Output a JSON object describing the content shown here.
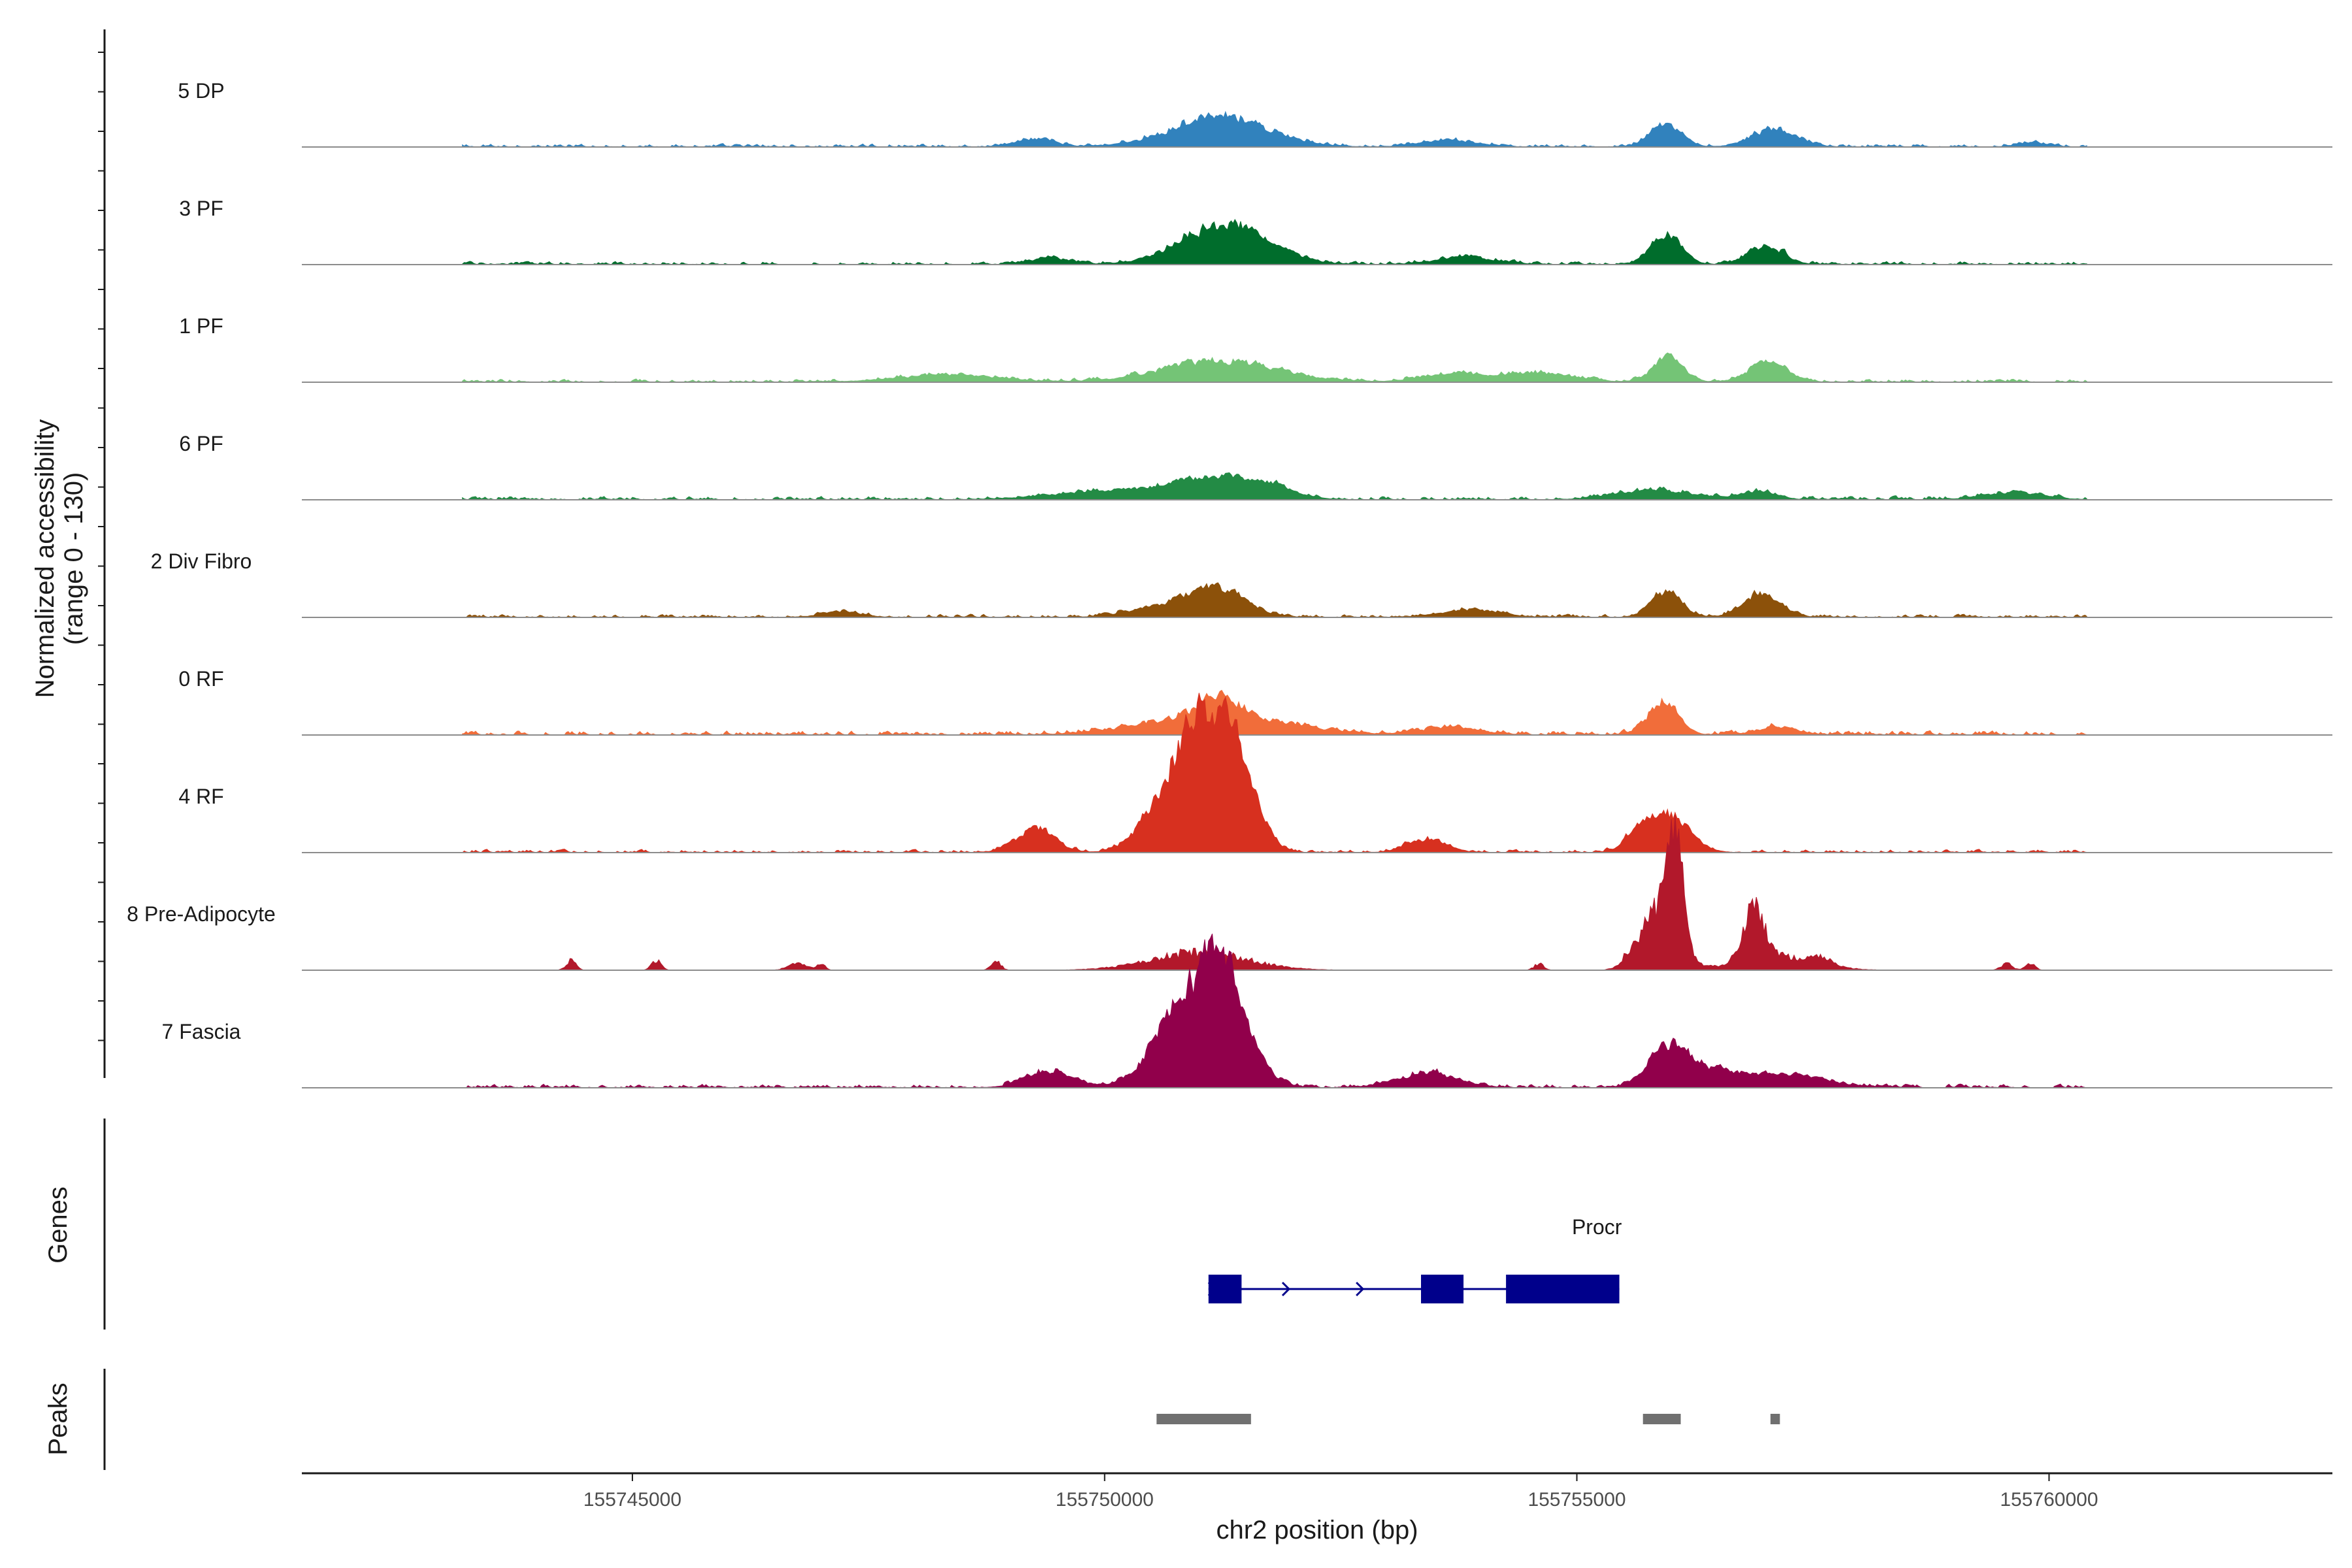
{
  "chart_data": {
    "type": "area",
    "title": "",
    "xlabel": "chr2 position (bp)",
    "ylabel": "Normalized accessibility",
    "ylabel_range": "(range 0 - 130)",
    "ylim": [
      0,
      130
    ],
    "xlim": [
      155741500,
      155763000
    ],
    "x_ticks": [
      155745000,
      155750000,
      155755000,
      155760000
    ],
    "x_tick_labels": [
      "155745000",
      "155750000",
      "155755000",
      "155760000"
    ],
    "genes_label": "Genes",
    "peaks_label": "Peaks",
    "tracks": [
      {
        "name": "5 DP",
        "color": "#3182bd",
        "baseline": 6,
        "noise": 3,
        "peaks": [
          [
            155751200,
            500,
            20
          ],
          [
            155755930,
            160,
            14
          ],
          [
            155757070,
            230,
            12
          ],
          [
            155749250,
            200,
            5
          ],
          [
            155753620,
            300,
            4
          ],
          [
            155759800,
            150,
            3
          ]
        ]
      },
      {
        "name": "3 PF",
        "color": "#006d2c",
        "baseline": 6,
        "noise": 3,
        "peaks": [
          [
            155751180,
            420,
            25
          ],
          [
            155755930,
            160,
            20
          ],
          [
            155756990,
            180,
            13
          ],
          [
            155751700,
            300,
            6
          ],
          [
            155753800,
            300,
            5
          ],
          [
            155749400,
            200,
            4
          ]
        ]
      },
      {
        "name": "1 PF",
        "color": "#74c476",
        "baseline": 6,
        "noise": 3,
        "peaks": [
          [
            155751200,
            600,
            14
          ],
          [
            155755950,
            160,
            16
          ],
          [
            155757010,
            200,
            13
          ],
          [
            155748300,
            500,
            5
          ],
          [
            155754500,
            400,
            6
          ],
          [
            155753600,
            300,
            5
          ]
        ]
      },
      {
        "name": "6 PF",
        "color": "#238b45",
        "baseline": 7,
        "noise": 3,
        "peaks": [
          [
            155751150,
            400,
            13
          ],
          [
            155750050,
            600,
            6
          ],
          [
            155751700,
            300,
            7
          ],
          [
            155755800,
            400,
            6
          ],
          [
            155756900,
            200,
            5
          ],
          [
            155759600,
            300,
            5
          ]
        ]
      },
      {
        "name": "2 Div Fibro",
        "color": "#8c510a",
        "baseline": 6,
        "noise": 3,
        "peaks": [
          [
            155751150,
            300,
            20
          ],
          [
            155755930,
            160,
            17
          ],
          [
            155756950,
            200,
            15
          ],
          [
            155750500,
            300,
            6
          ],
          [
            155753850,
            300,
            5
          ],
          [
            155747200,
            200,
            4
          ]
        ]
      },
      {
        "name": "0 RF",
        "color": "#f16d3a",
        "baseline": 8,
        "noise": 3,
        "peaks": [
          [
            155751200,
            700,
            14
          ],
          [
            155755900,
            160,
            22
          ],
          [
            155751200,
            200,
            12
          ],
          [
            155757100,
            200,
            5
          ],
          [
            155753650,
            300,
            5
          ]
        ]
      },
      {
        "name": "4 RF",
        "color": "#d7301f",
        "baseline": 6,
        "noise": 3,
        "peaks": [
          [
            155750800,
            300,
            56
          ],
          [
            155751200,
            250,
            60
          ],
          [
            155751450,
            200,
            25
          ],
          [
            155755950,
            220,
            25
          ],
          [
            155755650,
            150,
            10
          ],
          [
            155749250,
            200,
            16
          ],
          [
            155753400,
            200,
            9
          ]
        ]
      },
      {
        "name": "8 Pre-Adipocyte",
        "color": "#b2182b",
        "baseline": 0,
        "noise": 0,
        "peaks": [
          [
            155755950,
            150,
            100
          ],
          [
            155756050,
            80,
            95
          ],
          [
            155755630,
            120,
            30
          ],
          [
            155756880,
            110,
            60
          ],
          [
            155757100,
            400,
            18
          ],
          [
            155751000,
            500,
            22
          ],
          [
            155744350,
            50,
            12
          ],
          [
            155745250,
            50,
            12
          ],
          [
            155748850,
            50,
            12
          ],
          [
            155746750,
            100,
            8
          ],
          [
            155747000,
            40,
            8
          ],
          [
            155757600,
            100,
            8
          ],
          [
            155754600,
            50,
            8
          ],
          [
            155759550,
            60,
            8
          ],
          [
            155759800,
            50,
            8
          ]
        ]
      },
      {
        "name": "7 Fascia",
        "color": "#91004b",
        "baseline": 7,
        "noise": 3,
        "peaks": [
          [
            155750800,
            300,
            52
          ],
          [
            155751200,
            200,
            64
          ],
          [
            155751500,
            200,
            22
          ],
          [
            155755950,
            200,
            25
          ],
          [
            155756400,
            300,
            10
          ],
          [
            155749400,
            250,
            11
          ],
          [
            155753400,
            300,
            10
          ],
          [
            155757200,
            400,
            9
          ]
        ]
      }
    ],
    "genes": [
      {
        "name": "Procr",
        "start": 155751100,
        "end": 155755450,
        "strand": "+",
        "exons": [
          [
            155751100,
            155751450
          ],
          [
            155753350,
            155753800
          ],
          [
            155754250,
            155755450
          ]
        ]
      }
    ],
    "peaks": [
      [
        155750550,
        155751550
      ],
      [
        155755700,
        155756100
      ],
      [
        155757050,
        155757150
      ]
    ]
  }
}
